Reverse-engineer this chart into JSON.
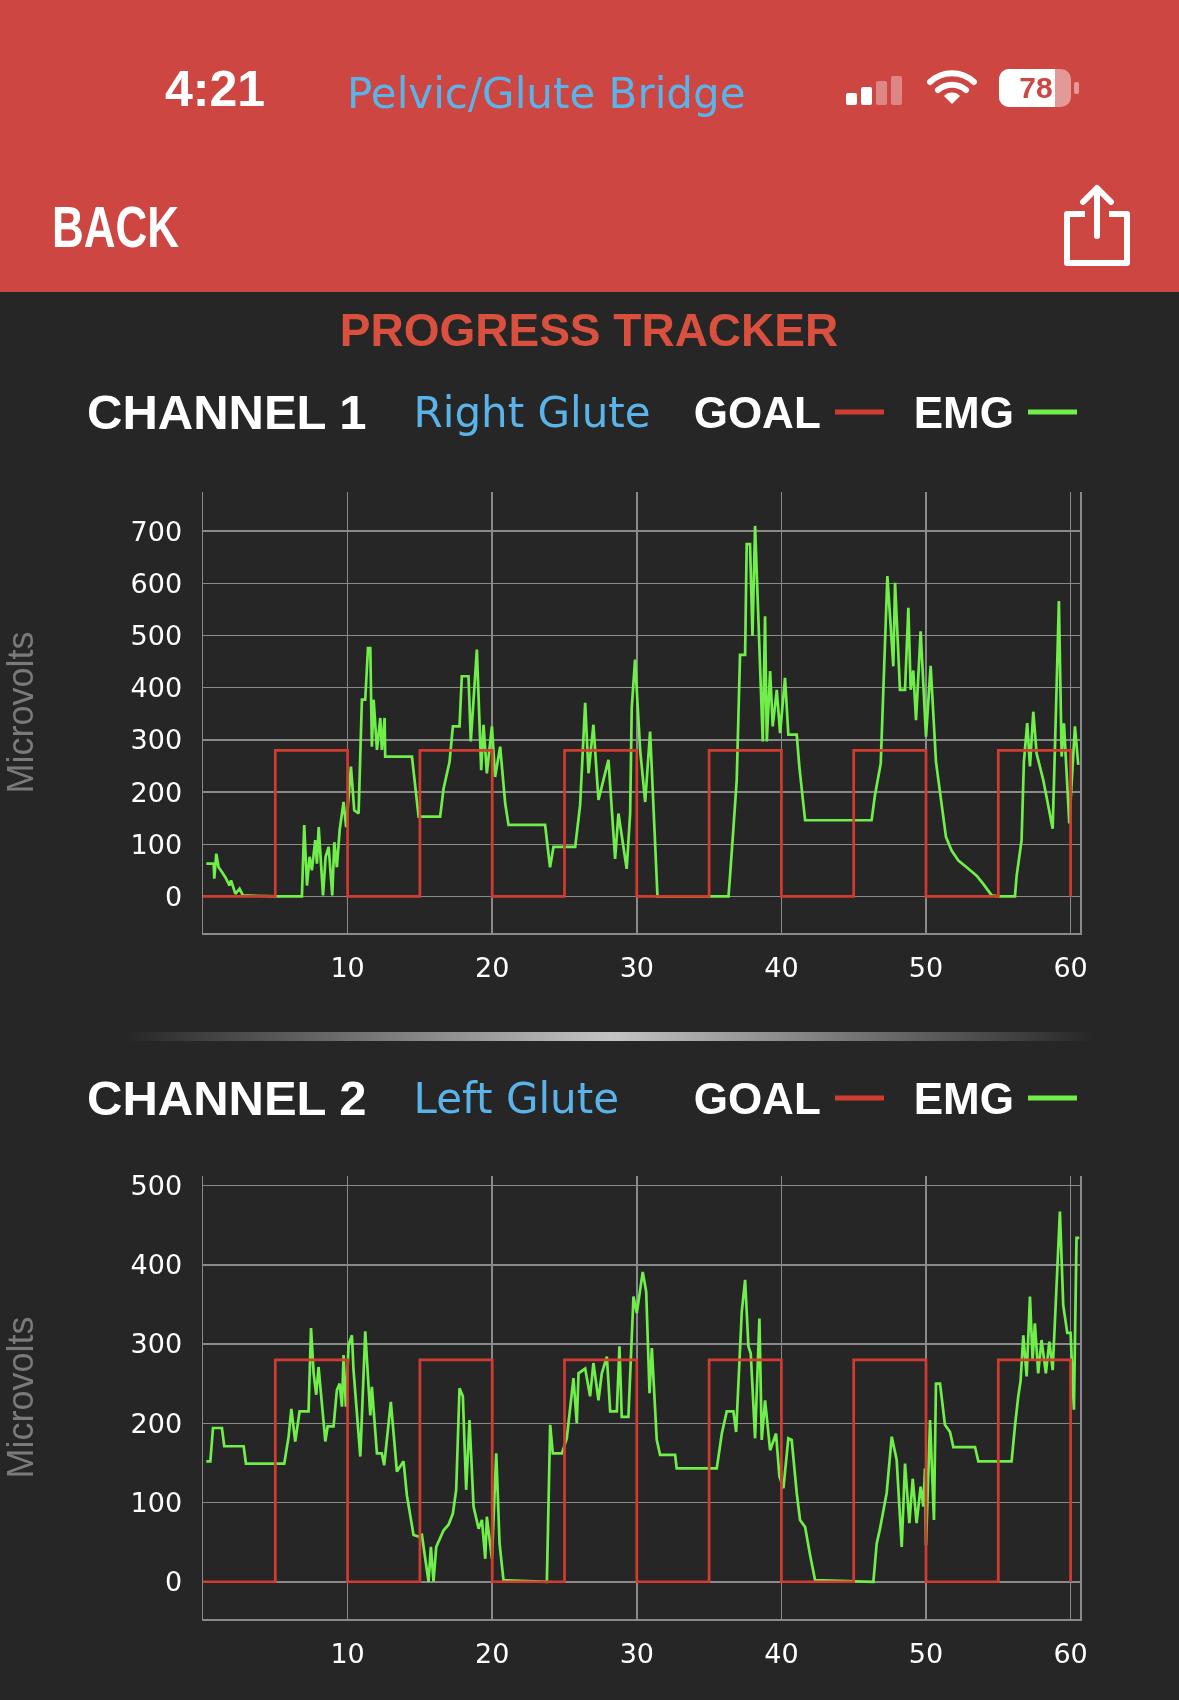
{
  "chart_data": [
    {
      "type": "line",
      "title": "CHANNEL 1",
      "subtitle": "Right Glute",
      "ylabel": "Microvolts",
      "annotations": [
        "4:21",
        "Pelvic/Glute Bridge",
        "78",
        "BACK",
        "PROGRESS TRACKER"
      ],
      "xlim": [
        0,
        60.65
      ],
      "xticks": [
        10,
        20,
        30,
        40,
        50,
        60
      ],
      "ylim": [
        -70,
        775
      ],
      "yticks": [
        0,
        100,
        200,
        300,
        400,
        500,
        600,
        700
      ],
      "grid": true,
      "legend": "top right",
      "series": [
        {
          "name": "GOAL",
          "type": "step",
          "color": "#d23c30",
          "x": [
            0,
            5,
            10,
            15,
            20,
            25,
            30,
            35,
            40,
            45,
            50,
            55,
            60
          ],
          "values": [
            0,
            280,
            0,
            280,
            0,
            280,
            0,
            280,
            0,
            280,
            0,
            280,
            0
          ]
        },
        {
          "name": "EMG",
          "type": "line",
          "color": "#70ee4a",
          "x": [
            0.23,
            0.74,
            0.78,
            0.92,
            1.08,
            1.31,
            1.54,
            1.84,
            1.94,
            2.24,
            2.53,
            2.76,
            5.1,
            6.84,
            7.0,
            7.19,
            7.37,
            7.53,
            7.76,
            7.88,
            8.0,
            8.3,
            8.48,
            8.69,
            8.94,
            9.08,
            9.26,
            9.45,
            9.72,
            9.9,
            10.23,
            10.46,
            10.76,
            10.99,
            11.22,
            11.41,
            11.57,
            11.68,
            11.8,
            12.03,
            12.26,
            12.37,
            12.56,
            12.6,
            14.45,
            14.91,
            16.4,
            16.64,
            17.05,
            17.28,
            17.74,
            17.9,
            18.36,
            18.52,
            18.94,
            19.24,
            19.4,
            19.63,
            19.98,
            20.2,
            20.55,
            20.9,
            21.13,
            23.66,
            24.0,
            24.24,
            25.74,
            26.08,
            26.43,
            26.66,
            27.0,
            27.35,
            28.04,
            28.5,
            28.73,
            29.3,
            29.54,
            29.65,
            29.88,
            30.23,
            30.58,
            30.92,
            31.43,
            35.07,
            36.34,
            36.45,
            36.68,
            36.91,
            37.14,
            37.49,
            37.6,
            37.83,
            38.0,
            38.18,
            38.71,
            38.87,
            38.99,
            39.22,
            39.4,
            39.68,
            39.91,
            40.25,
            40.48,
            41.06,
            41.24,
            41.64,
            46.24,
            46.47,
            46.87,
            47.33,
            47.74,
            47.86,
            48.2,
            48.55,
            48.78,
            48.94,
            49.12,
            49.31,
            49.63,
            50.0,
            50.32,
            50.69,
            51.38,
            51.77,
            52.24,
            52.81,
            53.5,
            53.96,
            54.54,
            55.12,
            56.15,
            56.27,
            56.61,
            56.77,
            57.0,
            57.19,
            57.42,
            57.65,
            58.11,
            58.76,
            58.99,
            59.19,
            59.38,
            59.54,
            59.91,
            60.3,
            60.53
          ],
          "values": [
            63,
            63,
            34,
            82,
            56,
            47,
            37,
            21,
            31,
            5,
            15,
            2,
            0,
            0,
            137,
            21,
            76,
            50,
            108,
            63,
            133,
            2,
            76,
            95,
            2,
            104,
            56,
            127,
            181,
            133,
            249,
            165,
            159,
            377,
            377,
            476,
            476,
            287,
            377,
            281,
            342,
            281,
            342,
            268,
            268,
            153,
            153,
            207,
            258,
            326,
            326,
            422,
            422,
            297,
            473,
            242,
            329,
            236,
            326,
            229,
            287,
            178,
            137,
            137,
            56,
            95,
            95,
            175,
            371,
            236,
            329,
            185,
            262,
            72,
            159,
            53,
            159,
            361,
            454,
            281,
            181,
            316,
            0,
            0,
            0,
            40,
            130,
            223,
            463,
            463,
            675,
            675,
            499,
            710,
            297,
            537,
            297,
            432,
            326,
            396,
            313,
            419,
            310,
            310,
            249,
            146,
            146,
            194,
            255,
            614,
            441,
            601,
            396,
            396,
            553,
            396,
            433,
            338,
            508,
            306,
            442,
            258,
            114,
            88,
            69,
            56,
            40,
            24,
            2,
            0,
            0,
            40,
            108,
            258,
            332,
            249,
            354,
            274,
            223,
            130,
            358,
            566,
            268,
            332,
            140,
            326,
            252
          ]
        }
      ]
    },
    {
      "type": "line",
      "title": "CHANNEL 2",
      "subtitle": "Left Glute",
      "ylabel": "Microvolts",
      "xlim": [
        0,
        60.65
      ],
      "xticks": [
        10,
        20,
        30,
        40,
        50,
        60
      ],
      "ylim": [
        -47,
        512
      ],
      "yticks": [
        0,
        100,
        200,
        300,
        400,
        500
      ],
      "grid": true,
      "legend": "top right",
      "series": [
        {
          "name": "GOAL",
          "type": "step",
          "color": "#d23c30",
          "x": [
            0,
            5,
            10,
            15,
            20,
            25,
            30,
            35,
            40,
            45,
            50,
            55,
            60
          ],
          "values": [
            0,
            280,
            0,
            280,
            0,
            280,
            0,
            280,
            0,
            280,
            0,
            280,
            0
          ]
        },
        {
          "name": "EMG",
          "type": "line",
          "color": "#70ee4a",
          "x": [
            0.23,
            0.51,
            0.69,
            1.31,
            1.47,
            2.81,
            2.97,
            5.62,
            5.92,
            6.11,
            6.38,
            6.68,
            7.3,
            7.47,
            7.65,
            7.83,
            7.99,
            8.46,
            8.62,
            9.03,
            9.26,
            9.45,
            9.61,
            9.72,
            9.88,
            10.07,
            10.3,
            10.41,
            10.88,
            11.22,
            11.57,
            11.68,
            12.03,
            12.37,
            12.53,
            12.99,
            13.41,
            13.87,
            14.1,
            14.56,
            14.91,
            15.14,
            15.37,
            15.6,
            15.76,
            15.94,
            16.13,
            16.64,
            16.98,
            17.28,
            17.51,
            17.74,
            17.97,
            18.2,
            18.43,
            18.71,
            19.06,
            19.29,
            19.52,
            19.63,
            19.98,
            20.28,
            20.51,
            20.78,
            23.78,
            24.01,
            24.19,
            24.82,
            25.16,
            25.62,
            25.85,
            25.97,
            26.43,
            26.77,
            27.0,
            27.35,
            27.58,
            27.93,
            28.16,
            28.62,
            28.8,
            28.96,
            29.42,
            29.77,
            30.0,
            30.41,
            30.65,
            30.88,
            31.04,
            31.38,
            31.61,
            32.65,
            32.76,
            35.53,
            35.88,
            36.22,
            36.68,
            36.87,
            37.26,
            37.49,
            37.72,
            37.88,
            38.18,
            38.48,
            38.64,
            38.87,
            39.22,
            39.63,
            39.86,
            40.14,
            40.48,
            40.71,
            41.06,
            41.29,
            41.64,
            41.98,
            42.33,
            46.36,
            46.59,
            46.82,
            47.28,
            47.63,
            47.97,
            48.32,
            48.55,
            48.85,
            49.08,
            49.35,
            49.63,
            49.82,
            49.93,
            50.0,
            50.28,
            50.55,
            50.69,
            50.97,
            51.31,
            51.66,
            51.89,
            53.39,
            53.62,
            55.92,
            56.15,
            56.38,
            56.54,
            56.73,
            56.96,
            57.19,
            57.37,
            57.53,
            57.76,
            57.99,
            58.29,
            58.53,
            58.76,
            58.99,
            59.26,
            59.49,
            59.77,
            60.0,
            60.23,
            60.41,
            60.6
          ],
          "values": [
            152,
            152,
            194,
            194,
            171,
            171,
            149,
            149,
            183,
            218,
            177,
            215,
            215,
            320,
            263,
            236,
            271,
            177,
            196,
            196,
            242,
            250,
            221,
            286,
            221,
            299,
            311,
            267,
            158,
            316,
            210,
            246,
            162,
            162,
            147,
            227,
            139,
            152,
            109,
            59,
            57,
            59,
            29,
            0,
            44,
            0,
            44,
            65,
            72,
            86,
            116,
            244,
            234,
            116,
            204,
            95,
            67,
            78,
            29,
            82,
            29,
            162,
            48,
            2,
            0,
            198,
            162,
            162,
            181,
            257,
            200,
            263,
            269,
            234,
            276,
            229,
            263,
            284,
            215,
            215,
            297,
            208,
            208,
            360,
            339,
            391,
            366,
            238,
            295,
            179,
            160,
            160,
            143,
            143,
            187,
            215,
            215,
            189,
            341,
            381,
            297,
            288,
            181,
            332,
            179,
            229,
            166,
            187,
            133,
            118,
            181,
            179,
            112,
            78,
            69,
            34,
            2,
            0,
            48,
            67,
            112,
            183,
            154,
            44,
            149,
            74,
            130,
            74,
            120,
            95,
            143,
            46,
            204,
            78,
            250,
            250,
            198,
            189,
            170,
            170,
            152,
            152,
            196,
            234,
            253,
            311,
            259,
            360,
            280,
            326,
            263,
            305,
            263,
            303,
            267,
            358,
            467,
            349,
            314,
            314,
            217,
            434,
            434
          ]
        }
      ]
    }
  ]
}
